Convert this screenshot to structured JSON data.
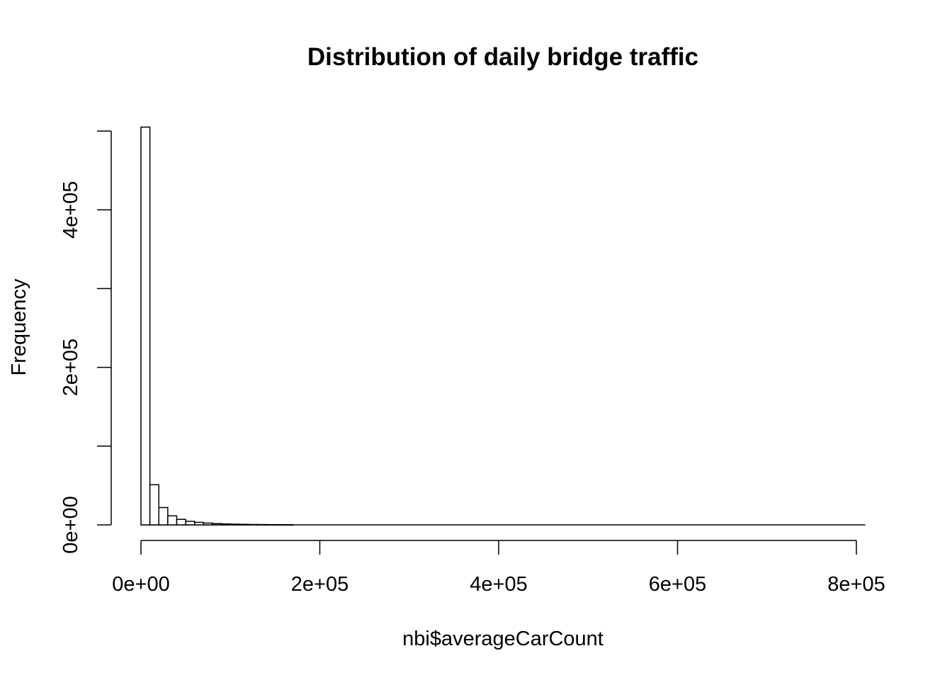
{
  "chart_data": {
    "type": "bar",
    "title": "Distribution of daily bridge traffic",
    "xlabel": "nbi$averageCarCount",
    "ylabel": "Frequency",
    "x_ticks": [
      {
        "value": 0,
        "label": "0e+00"
      },
      {
        "value": 200000,
        "label": "2e+05"
      },
      {
        "value": 400000,
        "label": "4e+05"
      },
      {
        "value": 600000,
        "label": "6e+05"
      },
      {
        "value": 800000,
        "label": "8e+05"
      }
    ],
    "y_ticks": [
      {
        "value": 0,
        "label": "0e+00"
      },
      {
        "value": 100000,
        "label": ""
      },
      {
        "value": 200000,
        "label": "2e+05"
      },
      {
        "value": 300000,
        "label": ""
      },
      {
        "value": 400000,
        "label": "4e+05"
      },
      {
        "value": 500000,
        "label": ""
      }
    ],
    "xlim": [
      0,
      800000
    ],
    "ylim": [
      0,
      500000
    ],
    "bin_width": 10000,
    "x_max": 810000,
    "bins": [
      {
        "x0": 0,
        "x1": 10000,
        "count": 505000
      },
      {
        "x0": 10000,
        "x1": 20000,
        "count": 51000
      },
      {
        "x0": 20000,
        "x1": 30000,
        "count": 22000
      },
      {
        "x0": 30000,
        "x1": 40000,
        "count": 11500
      },
      {
        "x0": 40000,
        "x1": 50000,
        "count": 7000
      },
      {
        "x0": 50000,
        "x1": 60000,
        "count": 4500
      },
      {
        "x0": 60000,
        "x1": 70000,
        "count": 3200
      },
      {
        "x0": 70000,
        "x1": 80000,
        "count": 2300
      },
      {
        "x0": 80000,
        "x1": 90000,
        "count": 1600
      },
      {
        "x0": 90000,
        "x1": 100000,
        "count": 1200
      },
      {
        "x0": 100000,
        "x1": 110000,
        "count": 900
      },
      {
        "x0": 110000,
        "x1": 120000,
        "count": 700
      },
      {
        "x0": 120000,
        "x1": 130000,
        "count": 500
      },
      {
        "x0": 130000,
        "x1": 140000,
        "count": 400
      },
      {
        "x0": 140000,
        "x1": 150000,
        "count": 300
      },
      {
        "x0": 150000,
        "x1": 160000,
        "count": 250
      },
      {
        "x0": 160000,
        "x1": 170000,
        "count": 200
      }
    ],
    "grid": false,
    "colors": {
      "bar_fill": "#ffffff",
      "bar_stroke": "#000000",
      "axis": "#000000"
    }
  }
}
